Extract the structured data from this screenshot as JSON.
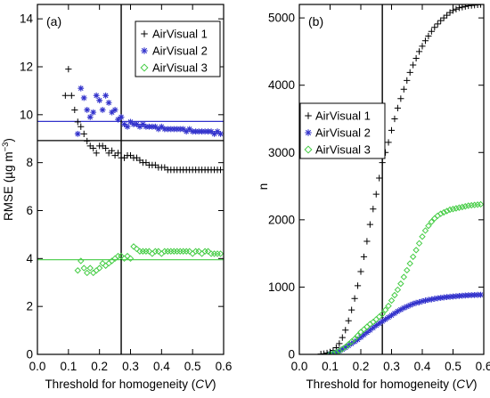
{
  "chart_data": [
    {
      "panel_label": "(a)",
      "type": "scatter",
      "xlabel_prefix": "Threshold for homogeneity (",
      "xlabel_var": "CV",
      "xlabel_suffix": ")",
      "ylabel_prefix": "RMSE (µg m",
      "ylabel_exp": "−3",
      "ylabel_suffix": ")",
      "xlim": [
        0.0,
        0.6
      ],
      "ylim": [
        0,
        14.6
      ],
      "xticks": [
        0.0,
        0.1,
        0.2,
        0.3,
        0.4,
        0.5,
        0.6
      ],
      "xtick_labels": [
        "0.0",
        "0.1",
        "0.2",
        "0.3",
        "0.4",
        "0.5",
        "0.6"
      ],
      "yticks": [
        0,
        2,
        4,
        6,
        8,
        10,
        12,
        14
      ],
      "ytick_labels": [
        "0",
        "2",
        "4",
        "6",
        "8",
        "10",
        "12",
        "14"
      ],
      "legend_position": "top-right",
      "vline_x": 0.27,
      "hlines": [
        {
          "y": 9.72,
          "color": "#3333cc"
        },
        {
          "y": 8.92,
          "color": "#000000"
        },
        {
          "y": 3.95,
          "color": "#44cc44"
        }
      ],
      "series": [
        {
          "name": "AirVisual 1",
          "marker": "plus",
          "color": "#000000",
          "x": [
            0.09,
            0.1,
            0.11,
            0.12,
            0.13,
            0.14,
            0.15,
            0.16,
            0.17,
            0.18,
            0.19,
            0.2,
            0.21,
            0.22,
            0.23,
            0.24,
            0.25,
            0.26,
            0.27,
            0.28,
            0.29,
            0.3,
            0.31,
            0.32,
            0.33,
            0.34,
            0.35,
            0.36,
            0.37,
            0.38,
            0.39,
            0.4,
            0.41,
            0.42,
            0.43,
            0.44,
            0.45,
            0.46,
            0.47,
            0.48,
            0.49,
            0.5,
            0.51,
            0.52,
            0.53,
            0.54,
            0.55,
            0.56,
            0.57,
            0.58,
            0.59
          ],
          "y": [
            10.8,
            11.9,
            10.8,
            10.2,
            9.7,
            9.5,
            9.2,
            8.9,
            8.7,
            8.6,
            8.4,
            8.7,
            8.7,
            8.6,
            8.4,
            8.5,
            8.3,
            8.4,
            8.2,
            8.2,
            8.3,
            8.3,
            8.2,
            8.2,
            8.1,
            8.0,
            8.0,
            7.9,
            7.9,
            7.9,
            7.8,
            7.8,
            7.8,
            7.7,
            7.7,
            7.7,
            7.7,
            7.7,
            7.7,
            7.7,
            7.7,
            7.7,
            7.7,
            7.7,
            7.7,
            7.7,
            7.7,
            7.7,
            7.7,
            7.7,
            7.7
          ]
        },
        {
          "name": "AirVisual 2",
          "marker": "asterisk",
          "color": "#3333cc",
          "x": [
            0.13,
            0.14,
            0.15,
            0.16,
            0.17,
            0.18,
            0.19,
            0.2,
            0.21,
            0.22,
            0.23,
            0.24,
            0.25,
            0.26,
            0.27,
            0.28,
            0.29,
            0.3,
            0.31,
            0.32,
            0.33,
            0.34,
            0.35,
            0.36,
            0.37,
            0.38,
            0.39,
            0.4,
            0.41,
            0.42,
            0.43,
            0.44,
            0.45,
            0.46,
            0.47,
            0.48,
            0.49,
            0.5,
            0.51,
            0.52,
            0.53,
            0.54,
            0.55,
            0.56,
            0.57,
            0.58,
            0.59
          ],
          "y": [
            9.2,
            11.1,
            10.7,
            10.2,
            9.9,
            10.1,
            10.8,
            10.6,
            10.2,
            10.8,
            10.5,
            10.1,
            10.2,
            9.8,
            9.9,
            9.6,
            9.5,
            9.7,
            9.6,
            9.6,
            9.5,
            9.6,
            9.5,
            9.5,
            9.5,
            9.5,
            9.4,
            9.5,
            9.4,
            9.4,
            9.4,
            9.4,
            9.4,
            9.4,
            9.4,
            9.3,
            9.4,
            9.3,
            9.3,
            9.3,
            9.3,
            9.3,
            9.3,
            9.3,
            9.2,
            9.3,
            9.2
          ]
        },
        {
          "name": "AirVisual 3",
          "marker": "diamond",
          "color": "#44cc44",
          "x": [
            0.13,
            0.14,
            0.15,
            0.16,
            0.17,
            0.18,
            0.19,
            0.2,
            0.21,
            0.22,
            0.23,
            0.24,
            0.25,
            0.26,
            0.27,
            0.28,
            0.29,
            0.3,
            0.31,
            0.32,
            0.33,
            0.34,
            0.35,
            0.36,
            0.37,
            0.38,
            0.39,
            0.4,
            0.41,
            0.42,
            0.43,
            0.44,
            0.45,
            0.46,
            0.47,
            0.48,
            0.49,
            0.5,
            0.51,
            0.52,
            0.53,
            0.54,
            0.55,
            0.56,
            0.57,
            0.58,
            0.59
          ],
          "y": [
            3.5,
            3.9,
            3.6,
            3.4,
            3.6,
            3.4,
            3.5,
            3.6,
            3.8,
            3.7,
            3.8,
            3.9,
            4.0,
            4.1,
            4.1,
            4.0,
            4.1,
            4.0,
            4.5,
            4.4,
            4.3,
            4.3,
            4.3,
            4.3,
            4.2,
            4.3,
            4.3,
            4.2,
            4.3,
            4.3,
            4.3,
            4.3,
            4.3,
            4.3,
            4.3,
            4.3,
            4.3,
            4.2,
            4.3,
            4.3,
            4.2,
            4.3,
            4.3,
            4.2,
            4.2,
            4.2,
            4.2
          ]
        }
      ]
    },
    {
      "panel_label": "(b)",
      "type": "scatter",
      "xlabel_prefix": "Threshold for homogeneity (",
      "xlabel_var": "CV",
      "xlabel_suffix": ")",
      "ylabel": "n",
      "xlim": [
        0.0,
        0.6
      ],
      "ylim": [
        0,
        5200
      ],
      "xticks": [
        0.0,
        0.1,
        0.2,
        0.3,
        0.4,
        0.5,
        0.6
      ],
      "xtick_labels": [
        "0.0",
        "0.1",
        "0.2",
        "0.3",
        "0.4",
        "0.5",
        "0.6"
      ],
      "yticks": [
        0,
        1000,
        2000,
        3000,
        4000,
        5000
      ],
      "ytick_labels": [
        "0",
        "1000",
        "2000",
        "3000",
        "4000",
        "5000"
      ],
      "legend_position": "center-left",
      "vline_x": 0.27,
      "series": [
        {
          "name": "AirVisual 1",
          "marker": "plus",
          "color": "#000000",
          "x": [
            0.07,
            0.08,
            0.09,
            0.1,
            0.11,
            0.12,
            0.13,
            0.14,
            0.15,
            0.16,
            0.17,
            0.18,
            0.19,
            0.2,
            0.21,
            0.22,
            0.23,
            0.24,
            0.25,
            0.26,
            0.27,
            0.28,
            0.29,
            0.3,
            0.31,
            0.32,
            0.33,
            0.34,
            0.35,
            0.36,
            0.37,
            0.38,
            0.39,
            0.4,
            0.41,
            0.42,
            0.43,
            0.44,
            0.45,
            0.46,
            0.47,
            0.48,
            0.49,
            0.5,
            0.51,
            0.52,
            0.53,
            0.54,
            0.55,
            0.56,
            0.57,
            0.58,
            0.59
          ],
          "y": [
            5,
            10,
            20,
            35,
            60,
            100,
            160,
            250,
            360,
            500,
            660,
            830,
            1020,
            1230,
            1450,
            1680,
            1930,
            2160,
            2380,
            2620,
            2850,
            3000,
            3150,
            3330,
            3500,
            3660,
            3800,
            3940,
            4070,
            4190,
            4300,
            4400,
            4500,
            4580,
            4660,
            4730,
            4800,
            4860,
            4910,
            4960,
            5000,
            5040,
            5080,
            5110,
            5130,
            5150,
            5160,
            5170,
            5180,
            5185,
            5190,
            5195,
            5200
          ]
        },
        {
          "name": "AirVisual 2",
          "marker": "asterisk",
          "color": "#3333cc",
          "x": [
            0.1,
            0.11,
            0.12,
            0.13,
            0.14,
            0.15,
            0.16,
            0.17,
            0.18,
            0.19,
            0.2,
            0.21,
            0.22,
            0.23,
            0.24,
            0.25,
            0.26,
            0.27,
            0.28,
            0.29,
            0.3,
            0.31,
            0.32,
            0.33,
            0.34,
            0.35,
            0.36,
            0.37,
            0.38,
            0.39,
            0.4,
            0.41,
            0.42,
            0.43,
            0.44,
            0.45,
            0.46,
            0.47,
            0.48,
            0.49,
            0.5,
            0.51,
            0.52,
            0.53,
            0.54,
            0.55,
            0.56,
            0.57,
            0.58,
            0.59
          ],
          "y": [
            5,
            15,
            30,
            50,
            75,
            100,
            130,
            160,
            190,
            220,
            255,
            290,
            325,
            360,
            395,
            430,
            460,
            490,
            520,
            550,
            580,
            610,
            640,
            665,
            690,
            710,
            730,
            750,
            765,
            775,
            790,
            800,
            810,
            818,
            826,
            834,
            840,
            846,
            852,
            856,
            860,
            864,
            868,
            872,
            875,
            878,
            880,
            882,
            884,
            885
          ]
        },
        {
          "name": "AirVisual 3",
          "marker": "diamond",
          "color": "#44cc44",
          "x": [
            0.1,
            0.11,
            0.12,
            0.13,
            0.14,
            0.15,
            0.16,
            0.17,
            0.18,
            0.19,
            0.2,
            0.21,
            0.22,
            0.23,
            0.24,
            0.25,
            0.26,
            0.27,
            0.28,
            0.29,
            0.3,
            0.31,
            0.32,
            0.33,
            0.34,
            0.35,
            0.36,
            0.37,
            0.38,
            0.39,
            0.4,
            0.41,
            0.42,
            0.43,
            0.44,
            0.45,
            0.46,
            0.47,
            0.48,
            0.49,
            0.5,
            0.51,
            0.52,
            0.53,
            0.54,
            0.55,
            0.56,
            0.57,
            0.58,
            0.59
          ],
          "y": [
            5,
            15,
            30,
            50,
            80,
            110,
            150,
            190,
            230,
            280,
            330,
            370,
            410,
            450,
            480,
            520,
            560,
            600,
            660,
            720,
            800,
            880,
            960,
            1050,
            1150,
            1250,
            1350,
            1450,
            1550,
            1650,
            1750,
            1840,
            1910,
            1970,
            2020,
            2060,
            2090,
            2110,
            2130,
            2150,
            2160,
            2170,
            2180,
            2190,
            2200,
            2210,
            2215,
            2220,
            2225,
            2230
          ]
        }
      ]
    }
  ]
}
